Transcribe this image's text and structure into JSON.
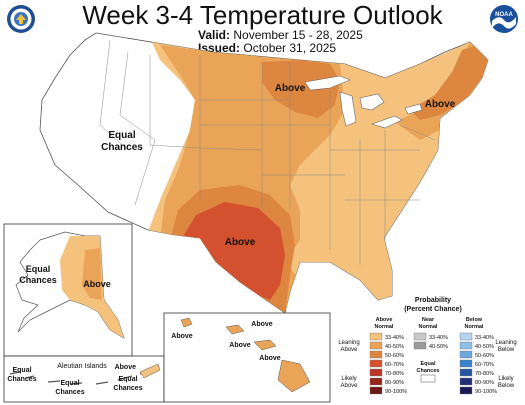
{
  "header": {
    "title": "Week 3-4 Temperature Outlook",
    "valid_label": "Valid:",
    "valid_dates": "November 15 - 28, 2025",
    "issued_label": "Issued:",
    "issued_date": "October 31, 2025"
  },
  "logos": {
    "left": "usdoc-seal-icon",
    "right": "noaa-logo-icon",
    "noaa_text": "NOAA"
  },
  "map_labels": {
    "west_equal": "Equal",
    "west_chances": "Chances",
    "plains_above": "Above",
    "northeast_above": "Above",
    "texas_above": "Above",
    "alaska_equal": "Equal",
    "alaska_chances": "Chances",
    "alaska_above": "Above",
    "aleutian_title": "Aleutian Islands",
    "aleutian_equal_1": "Equal",
    "aleutian_chances_1": "Chances",
    "aleutian_equal_2": "Equal",
    "aleutian_chances_2": "Chances",
    "aleutian_equal_3": "Equal",
    "aleutian_chances_3": "Chances",
    "aleutian_above": "Above",
    "hawaii_above_1": "Above",
    "hawaii_above_2": "Above",
    "hawaii_above_3": "Above",
    "hawaii_above_4": "Above"
  },
  "legend": {
    "title": "Probability",
    "subtitle": "(Percent Chance)",
    "above_header_1": "Above",
    "above_header_2": "Normal",
    "near_header_1": "Near",
    "near_header_2": "Normal",
    "below_header_1": "Below",
    "below_header_2": "Normal",
    "leaning_above_1": "Leaning",
    "leaning_above_2": "Above",
    "likely_above_1": "Likely",
    "likely_above_2": "Above",
    "leaning_below_1": "Leaning",
    "leaning_below_2": "Below",
    "likely_below_1": "Likely",
    "likely_below_2": "Below",
    "equal_1": "Equal",
    "equal_2": "Chances",
    "above_ranges": [
      "33-40%",
      "40-50%",
      "50-60%",
      "60-70%",
      "70-80%",
      "80-90%",
      "90-100%"
    ],
    "above_colors": [
      "#f4c27d",
      "#e9a458",
      "#dd8640",
      "#d4512f",
      "#b8372a",
      "#96271f",
      "#6e1a14"
    ],
    "near_ranges": [
      "33-40%",
      "40-50%"
    ],
    "near_colors": [
      "#c8c8c8",
      "#9a9a9a"
    ],
    "below_ranges": [
      "33-40%",
      "40-50%",
      "50-60%",
      "60-70%",
      "70-80%",
      "80-90%",
      "90-100%"
    ],
    "below_colors": [
      "#b5d3ec",
      "#8ebfe6",
      "#6fa8dc",
      "#3a83cb",
      "#2855a2",
      "#233077",
      "#1a1a55"
    ]
  },
  "colors": {
    "p33": "#f4c27d",
    "p40": "#e9a458",
    "p50": "#dd8640",
    "p60": "#d4512f",
    "lake": "#b7d7ee",
    "equal": "#ffffff",
    "border": "#555555"
  }
}
